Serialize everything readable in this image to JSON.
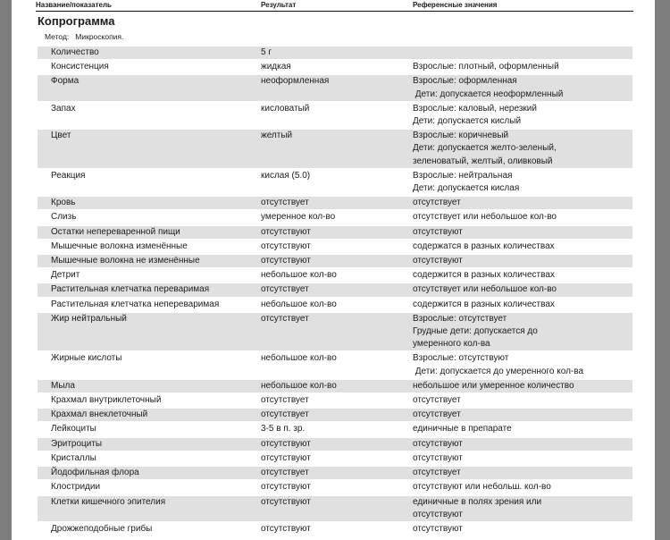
{
  "page": {
    "background_color": "#ffffff",
    "viewer_margin_color": "#7d7d7d",
    "row_shade_color": "#e0e0e0",
    "text_color": "#1c1c1c"
  },
  "header": {
    "columns": [
      "Название/показатель",
      "Результат",
      "Референсные значения"
    ]
  },
  "section": {
    "title": "Копрограмма",
    "method_label": "Метод:",
    "method_value": "Микроскопия."
  },
  "table": {
    "rows": [
      {
        "name": "Количество",
        "result": "5 г",
        "reference": [],
        "shaded": true
      },
      {
        "name": "Консистенция",
        "result": "жидкая",
        "reference": [
          "Взрослые: плотный, оформленный"
        ],
        "shaded": false
      },
      {
        "name": "Форма",
        "result": "неоформленная",
        "reference": [
          "Взрослые: оформленная",
          " Дети: допускается неоформленный"
        ],
        "shaded": true
      },
      {
        "name": "Запах",
        "result": "кисловатый",
        "reference": [
          "Взрослые: каловый, нерезкий",
          "Дети: допускается кислый"
        ],
        "shaded": false
      },
      {
        "name": "Цвет",
        "result": "желтый",
        "reference": [
          "Взрослые: коричневый",
          "Дети: допускается желто-зеленый,",
          "зеленоватый, желтый, оливковый"
        ],
        "shaded": true
      },
      {
        "name": "Реакция",
        "result": "кислая (5.0)",
        "reference": [
          "Взрослые: нейтральная",
          "Дети: допускается кислая"
        ],
        "shaded": false
      },
      {
        "name": "Кровь",
        "result": "отсутствует",
        "reference": [
          "отсутствует"
        ],
        "shaded": true
      },
      {
        "name": "Слизь",
        "result": "умеренное кол-во",
        "reference": [
          "отсутствует или небольшое кол-во"
        ],
        "shaded": false
      },
      {
        "name": "Остатки непереваренной пищи",
        "result": "отсутствуют",
        "reference": [
          "отсутствуют"
        ],
        "shaded": true
      },
      {
        "name": "Мышечные волокна изменённые",
        "result": "отсутствуют",
        "reference": [
          "содержатся в разных количествах"
        ],
        "shaded": false
      },
      {
        "name": "Мышечные волокна не изменённые",
        "result": "отсутствуют",
        "reference": [
          "отсутствуют"
        ],
        "shaded": true
      },
      {
        "name": "Детрит",
        "result": "небольшое кол-во",
        "reference": [
          "содержится в разных количествах"
        ],
        "shaded": false
      },
      {
        "name": "Растительная клетчатка переваримая",
        "result": "отсутствует",
        "reference": [
          "отсутствует или небольшое кол-во"
        ],
        "shaded": true
      },
      {
        "name": "Растительная клетчатка непереваримая",
        "result": "небольшое кол-во",
        "reference": [
          "содержится в разных количествах"
        ],
        "shaded": false
      },
      {
        "name": "Жир нейтральный",
        "result": "отсутствует",
        "reference": [
          "Взрослые: отсутствует",
          "Грудные дети: допускается до",
          "умеренного кол-ва"
        ],
        "shaded": true
      },
      {
        "name": "Жирные кислоты",
        "result": "небольшое кол-во",
        "reference": [
          "Взрослые: отсутствуют",
          " Дети: допускается до умеренного кол-ва"
        ],
        "shaded": false
      },
      {
        "name": "Мыла",
        "result": "небольшое кол-во",
        "reference": [
          "небольшое или умеренное количество"
        ],
        "shaded": true
      },
      {
        "name": "Крахмал внутриклеточный",
        "result": "отсутствует",
        "reference": [
          "отсутствует"
        ],
        "shaded": false
      },
      {
        "name": "Крахмал внеклеточный",
        "result": "отсутствует",
        "reference": [
          "отсутствует"
        ],
        "shaded": true
      },
      {
        "name": "Лейкоциты",
        "result": "3-5 в п. зр.",
        "reference": [
          "единичные в препарате"
        ],
        "shaded": false
      },
      {
        "name": "Эритроциты",
        "result": "отсутствуют",
        "reference": [
          "отсутствуют"
        ],
        "shaded": true
      },
      {
        "name": "Кристаллы",
        "result": "отсутствуют",
        "reference": [
          "отсутствуют"
        ],
        "shaded": false
      },
      {
        "name": "Йодофильная флора",
        "result": "отсутствует",
        "reference": [
          "отсутствует"
        ],
        "shaded": true
      },
      {
        "name": "Клостридии",
        "result": "отсутствуют",
        "reference": [
          "отсутствуют или небольш. кол-во"
        ],
        "shaded": false
      },
      {
        "name": "Клетки кишечного эпителия",
        "result": "отсутствуют",
        "reference": [
          "единичные в полях зрения или",
          "отсутствуют"
        ],
        "shaded": true
      },
      {
        "name": "Дрожжеподобные грибы",
        "result": "отсутствуют",
        "reference": [
          "отсутствуют"
        ],
        "shaded": false
      }
    ]
  }
}
